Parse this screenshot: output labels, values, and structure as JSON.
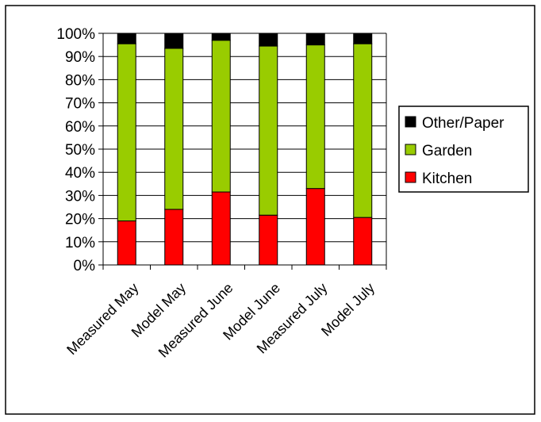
{
  "chart_data": {
    "type": "bar",
    "stacked": true,
    "percent": true,
    "categories": [
      "Measured May",
      "Model May",
      "Measured June",
      "Model June",
      "Measured July",
      "Model July"
    ],
    "series": [
      {
        "name": "Kitchen",
        "color": "#ff0000",
        "values": [
          19,
          24,
          31.5,
          21.5,
          33,
          20.5
        ]
      },
      {
        "name": "Garden",
        "color": "#99cc00",
        "values": [
          76.5,
          69.5,
          65.5,
          73,
          62,
          75
        ]
      },
      {
        "name": "Other/Paper",
        "color": "#000000",
        "values": [
          4.5,
          6.5,
          3,
          5.5,
          5,
          4.5
        ]
      }
    ],
    "y_ticks": [
      "0%",
      "10%",
      "20%",
      "30%",
      "40%",
      "50%",
      "60%",
      "70%",
      "80%",
      "90%",
      "100%"
    ],
    "ylim": [
      0,
      100
    ],
    "grid": "horizontal",
    "legend": {
      "position": "right",
      "order": [
        "Other/Paper",
        "Garden",
        "Kitchen"
      ]
    },
    "title": "",
    "xlabel": "",
    "ylabel": ""
  }
}
